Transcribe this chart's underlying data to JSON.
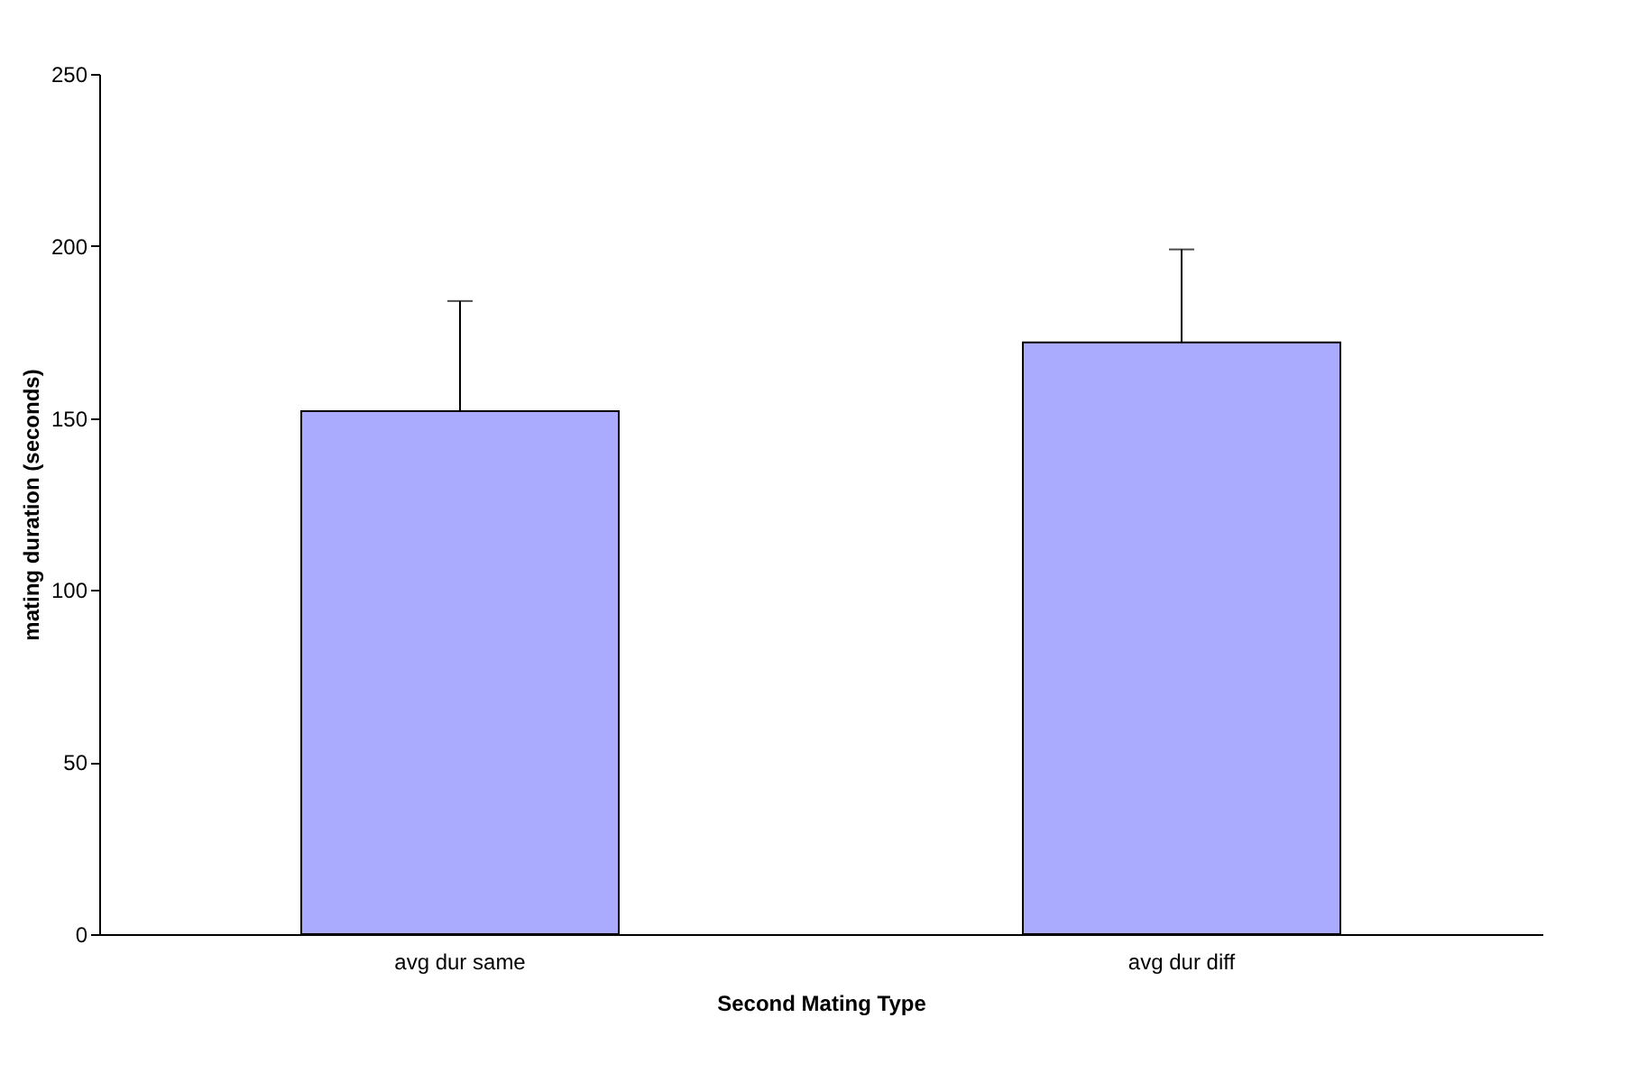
{
  "chart_data": {
    "type": "bar",
    "xlabel": "Second Mating Type",
    "ylabel": "mating duration (seconds)",
    "categories": [
      "avg dur same",
      "avg dur diff"
    ],
    "values": [
      152,
      172
    ],
    "errors": [
      [
        152,
        184
      ],
      [
        172,
        199
      ]
    ],
    "color": "#aaaaff",
    "ylim": [
      0,
      250
    ],
    "yticks": [
      0,
      50,
      100,
      150,
      200,
      250
    ],
    "grid": false
  }
}
